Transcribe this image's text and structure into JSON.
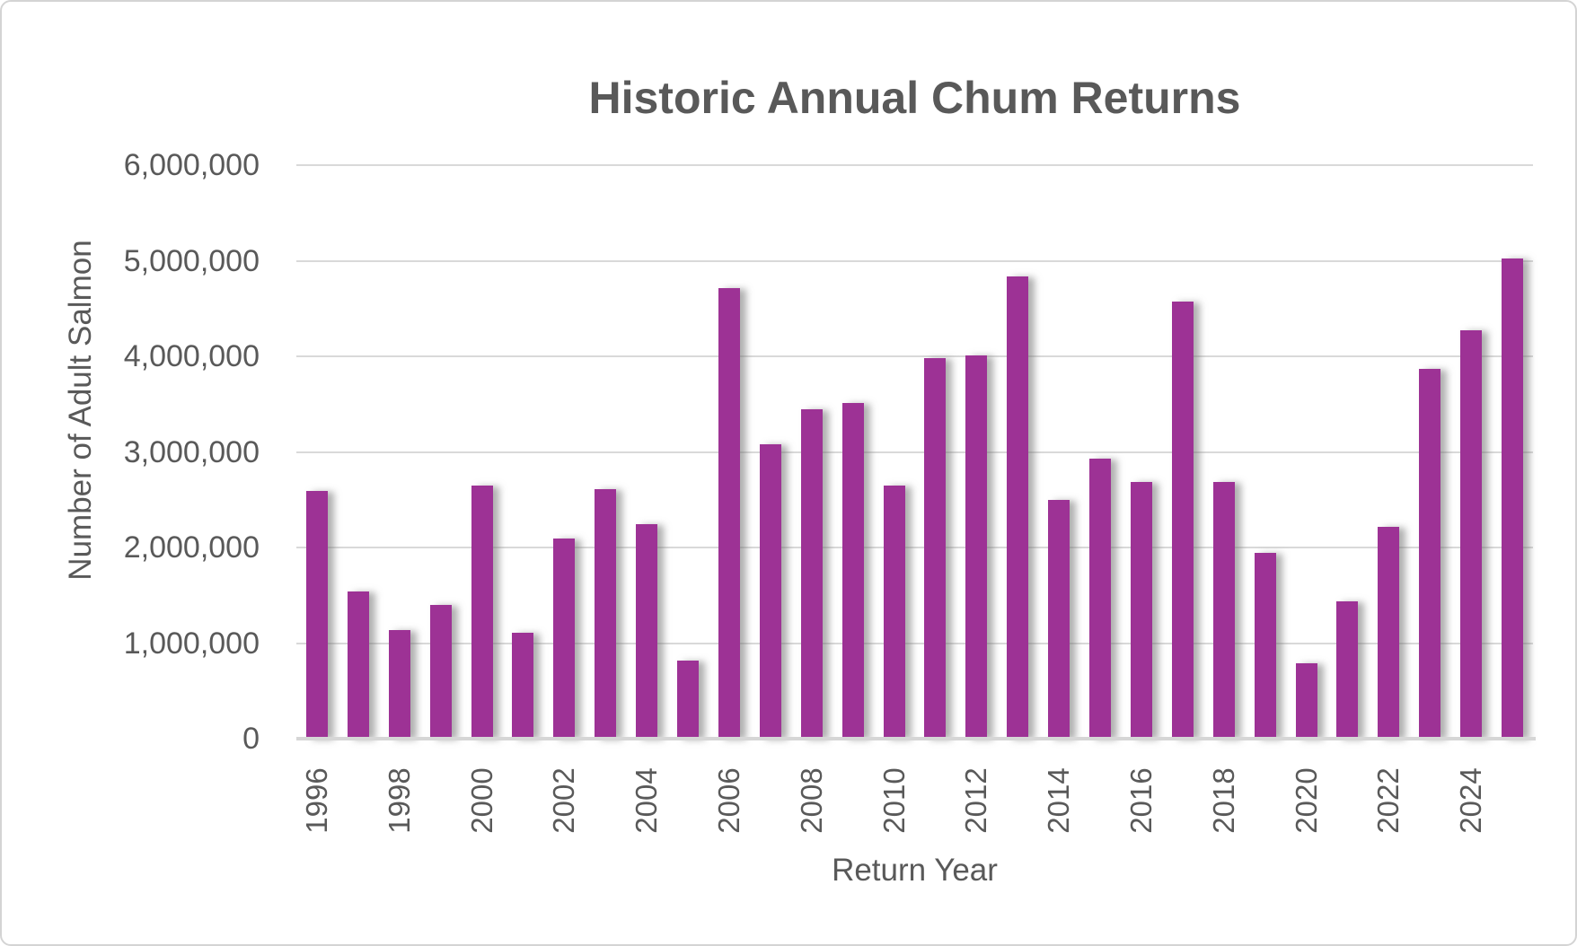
{
  "colors": {
    "bar": "#9d3295",
    "text": "#595959",
    "gridline": "#d9d9d9",
    "axis_line": "#d6d6d6",
    "frame_border": "#d4d4d4",
    "background": "#ffffff"
  },
  "chart_data": {
    "type": "bar",
    "title": "Historic Annual Chum Returns",
    "xlabel": "Return Year",
    "ylabel": "Number of Adult Salmon",
    "ylim": [
      0,
      6000000
    ],
    "ytick_interval": 1000000,
    "grid": true,
    "legend": false,
    "yticks": [
      "0",
      "1,000,000",
      "2,000,000",
      "3,000,000",
      "4,000,000",
      "5,000,000",
      "6,000,000"
    ],
    "categories": [
      1996,
      1997,
      1998,
      1999,
      2000,
      2001,
      2002,
      2003,
      2004,
      2005,
      2006,
      2007,
      2008,
      2009,
      2010,
      2011,
      2012,
      2013,
      2014,
      2015,
      2016,
      2017,
      2018,
      2019,
      2020,
      2021,
      2022,
      2023,
      2024,
      2025
    ],
    "values": [
      2590000,
      1540000,
      1140000,
      1400000,
      2650000,
      1110000,
      2090000,
      2610000,
      2240000,
      820000,
      4710000,
      3080000,
      3450000,
      3510000,
      2650000,
      3980000,
      4010000,
      4840000,
      2500000,
      2930000,
      2690000,
      4570000,
      2690000,
      1940000,
      790000,
      1440000,
      2220000,
      3870000,
      4270000,
      5020000
    ],
    "xtick_labels": [
      "1996",
      "1998",
      "2000",
      "2002",
      "2004",
      "2006",
      "2008",
      "2010",
      "2012",
      "2014",
      "2016",
      "2018",
      "2020",
      "2022",
      "2024"
    ]
  }
}
